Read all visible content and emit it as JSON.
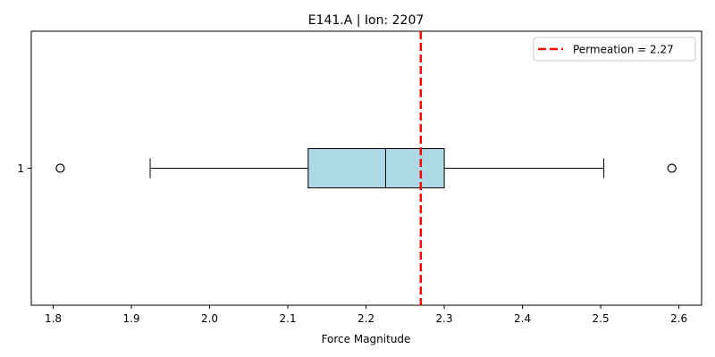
{
  "chart_data": {
    "type": "boxplot",
    "title": "E141.A | Ion: 2207",
    "xlabel": "Force Magnitude",
    "ylabel": "",
    "orientation": "horizontal",
    "xlim": [
      1.772,
      2.629
    ],
    "ylim": [
      0.5,
      1.5
    ],
    "xticks": [
      1.8,
      1.9,
      2.0,
      2.1,
      2.2,
      2.3,
      2.4,
      2.5,
      2.6
    ],
    "xtick_labels": [
      "1.8",
      "1.9",
      "2.0",
      "2.1",
      "2.2",
      "2.3",
      "2.4",
      "2.5",
      "2.6"
    ],
    "yticks": [
      1
    ],
    "ytick_labels": [
      "1"
    ],
    "box": {
      "position": 1,
      "whisker_low": 1.924,
      "q1": 2.126,
      "median": 2.225,
      "q3": 2.3,
      "whisker_high": 2.504,
      "outliers": [
        1.809,
        2.591
      ],
      "fill_color": "#add8e6",
      "edge_color": "#000000"
    },
    "reference_line": {
      "value": 2.27,
      "label": "Permeation = 2.27",
      "color": "#ff0000",
      "style": "dashed"
    },
    "legend": {
      "placement": "upper-right",
      "entries": [
        "Permeation = 2.27"
      ]
    },
    "grid": false
  }
}
